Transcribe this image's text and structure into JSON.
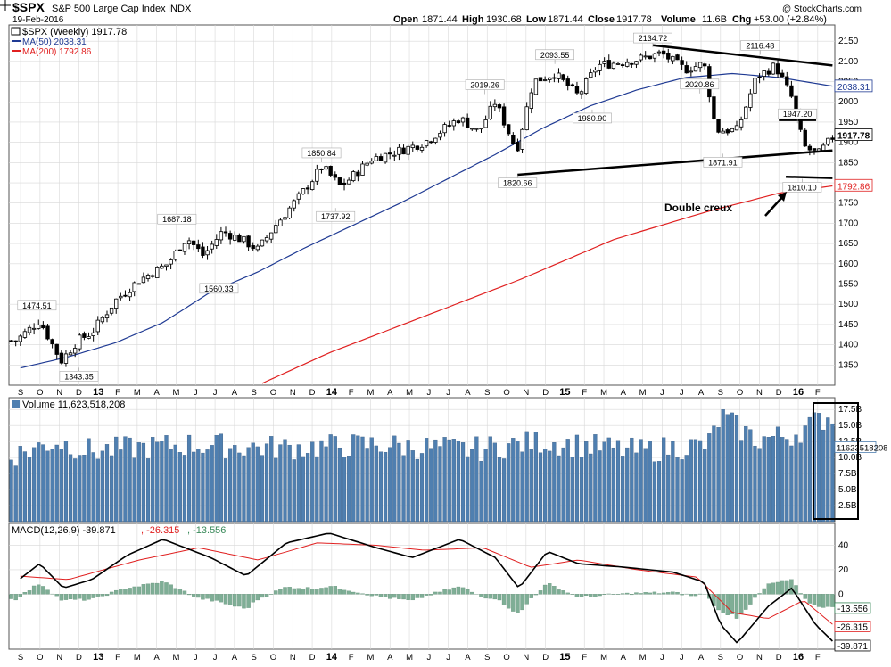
{
  "header": {
    "symbol": "$SPX",
    "name": "S&P 500 Large Cap Index",
    "exchange": "INDX",
    "date": "19-Feb-2016",
    "watermark": "@ StockCharts.com",
    "open_label": "Open",
    "open": "1871.44",
    "high_label": "High",
    "high": "1930.68",
    "low_label": "Low",
    "low": "1871.44",
    "close_label": "Close",
    "close": "1917.78",
    "volume_label": "Volume",
    "volume": "11.6B",
    "chg_label": "Chg",
    "chg": "+53.00 (+2.84%)"
  },
  "colors": {
    "up": "#ffffff",
    "down": "#000000",
    "ma50": "#1f3a93",
    "ma200": "#e02020",
    "volume_bar": "#4f7fb0",
    "macd_hist": "#7fae96",
    "grid": "#d8d8d8"
  },
  "chart_data": [
    {
      "type": "candlestick",
      "title": "$SPX (Weekly) 1917.78",
      "legend": [
        {
          "label": "$SPX (Weekly) 1917.78",
          "type": "candle"
        },
        {
          "label": "MA(50) 2038.31",
          "color": "#1f3a93"
        },
        {
          "label": "MA(200) 1792.86",
          "color": "#e02020"
        }
      ],
      "ylim": [
        1300,
        2190
      ],
      "y_ticks": [
        1350,
        1400,
        1450,
        1500,
        1550,
        1600,
        1650,
        1700,
        1750,
        1800,
        1850,
        1900,
        1950,
        2000,
        2050,
        2100,
        2150
      ],
      "x_ticks": [
        "S",
        "O",
        "N",
        "D",
        "13",
        "F",
        "M",
        "A",
        "M",
        "J",
        "J",
        "A",
        "S",
        "O",
        "N",
        "D",
        "14",
        "F",
        "M",
        "A",
        "M",
        "J",
        "J",
        "A",
        "S",
        "O",
        "N",
        "D",
        "15",
        "F",
        "M",
        "A",
        "M",
        "J",
        "J",
        "A",
        "S",
        "O",
        "N",
        "D",
        "16",
        "F"
      ],
      "x_bold_ticks": [
        "13",
        "14",
        "15",
        "16"
      ],
      "annotations": [
        {
          "text": "1474.51",
          "value": 1474.51
        },
        {
          "text": "1343.35",
          "value": 1343.35
        },
        {
          "text": "1687.18",
          "value": 1687.18
        },
        {
          "text": "1560.33",
          "value": 1560.33
        },
        {
          "text": "1850.84",
          "value": 1850.84
        },
        {
          "text": "1737.92",
          "value": 1737.92
        },
        {
          "text": "2019.26",
          "value": 2019.26
        },
        {
          "text": "1820.66",
          "value": 1820.66
        },
        {
          "text": "2093.55",
          "value": 2093.55
        },
        {
          "text": "1980.90",
          "value": 1980.9
        },
        {
          "text": "2134.72",
          "value": 2134.72
        },
        {
          "text": "2020.86",
          "value": 2020.86
        },
        {
          "text": "1871.91",
          "value": 1871.91
        },
        {
          "text": "2116.48",
          "value": 2116.48
        },
        {
          "text": "1947.20",
          "value": 1947.2
        },
        {
          "text": "1810.10",
          "value": 1810.1
        }
      ],
      "price_tags": [
        {
          "text": "2038.31",
          "value": 2038.31
        },
        {
          "text": "1917.78",
          "value": 1917.78
        },
        {
          "text": "1792.86",
          "value": 1792.86
        }
      ],
      "trendlines": [
        {
          "from": [
            2015.38,
            2140
          ],
          "to": [
            2016.15,
            2090
          ]
        },
        {
          "from": [
            2014.8,
            1820
          ],
          "to": [
            2016.15,
            1880
          ]
        },
        {
          "from": [
            2015.95,
            1815
          ],
          "to": [
            2016.15,
            1812
          ]
        },
        {
          "from": [
            2015.92,
            1955
          ],
          "to": [
            2016.08,
            1955
          ]
        }
      ],
      "note": "Double creux",
      "close_anchors": [
        [
          2012.68,
          1410
        ],
        [
          2012.78,
          1460
        ],
        [
          2012.87,
          1360
        ],
        [
          2012.94,
          1410
        ],
        [
          2013.0,
          1430
        ],
        [
          2013.1,
          1510
        ],
        [
          2013.2,
          1560
        ],
        [
          2013.32,
          1600
        ],
        [
          2013.4,
          1665
        ],
        [
          2013.47,
          1620
        ],
        [
          2013.55,
          1680
        ],
        [
          2013.63,
          1660
        ],
        [
          2013.7,
          1635
        ],
        [
          2013.78,
          1700
        ],
        [
          2013.88,
          1770
        ],
        [
          2013.97,
          1840
        ],
        [
          2014.05,
          1790
        ],
        [
          2014.18,
          1860
        ],
        [
          2014.3,
          1880
        ],
        [
          2014.4,
          1900
        ],
        [
          2014.55,
          1960
        ],
        [
          2014.63,
          1925
        ],
        [
          2014.7,
          2000
        ],
        [
          2014.79,
          1880
        ],
        [
          2014.86,
          2050
        ],
        [
          2014.95,
          2070
        ],
        [
          2015.05,
          2015
        ],
        [
          2015.13,
          2090
        ],
        [
          2015.3,
          2105
        ],
        [
          2015.4,
          2120
        ],
        [
          2015.5,
          2080
        ],
        [
          2015.58,
          2095
        ],
        [
          2015.63,
          1930
        ],
        [
          2015.72,
          1930
        ],
        [
          2015.8,
          2060
        ],
        [
          2015.88,
          2090
        ],
        [
          2015.95,
          2010
        ],
        [
          2016.0,
          1890
        ],
        [
          2016.06,
          1870
        ],
        [
          2016.13,
          1918
        ]
      ],
      "ma50_anchors": [
        [
          2012.68,
          1340
        ],
        [
          2012.9,
          1370
        ],
        [
          2013.1,
          1405
        ],
        [
          2013.3,
          1455
        ],
        [
          2013.5,
          1530
        ],
        [
          2013.7,
          1580
        ],
        [
          2013.9,
          1640
        ],
        [
          2014.1,
          1695
        ],
        [
          2014.3,
          1750
        ],
        [
          2014.5,
          1810
        ],
        [
          2014.7,
          1870
        ],
        [
          2014.9,
          1935
        ],
        [
          2015.1,
          1990
        ],
        [
          2015.3,
          2030
        ],
        [
          2015.5,
          2060
        ],
        [
          2015.7,
          2070
        ],
        [
          2015.9,
          2060
        ],
        [
          2016.13,
          2038
        ]
      ],
      "ma200_anchors": [
        [
          2013.7,
          1300
        ],
        [
          2014.0,
          1380
        ],
        [
          2014.4,
          1470
        ],
        [
          2014.8,
          1560
        ],
        [
          2015.2,
          1660
        ],
        [
          2015.6,
          1730
        ],
        [
          2015.9,
          1775
        ],
        [
          2016.13,
          1793
        ]
      ]
    },
    {
      "type": "bar",
      "title": "Volume 11,623,518,208",
      "y_ticks": [
        2.5,
        5.0,
        7.5,
        10.0,
        12.5,
        15.0,
        17.5
      ],
      "y_tick_labels": [
        "2.5B",
        "5.0B",
        "7.5B",
        "10.0B",
        "12.5B",
        "15.0B",
        "17.5B"
      ],
      "last_value_tag": "11623518208",
      "ylim": [
        0,
        18.5
      ],
      "value_anchors": [
        [
          2012.68,
          10.5
        ],
        [
          2012.85,
          12.5
        ],
        [
          2013.0,
          11.0
        ],
        [
          2013.4,
          12.0
        ],
        [
          2013.8,
          11.5
        ],
        [
          2014.2,
          12.0
        ],
        [
          2014.6,
          11.2
        ],
        [
          2014.9,
          12.5
        ],
        [
          2015.3,
          11.0
        ],
        [
          2015.6,
          12.0
        ],
        [
          2015.65,
          16.5
        ],
        [
          2015.8,
          12.8
        ],
        [
          2015.95,
          13.5
        ],
        [
          2016.05,
          15.5
        ],
        [
          2016.13,
          16.8
        ]
      ]
    },
    {
      "type": "line",
      "title": "MACD(12,26,9) -39.871, -26.315, -13.556",
      "legend": [
        {
          "label": "MACD(12,26,9) -39.871",
          "color": "#000000"
        },
        {
          "label": ", -26.315",
          "color": "#e02020"
        },
        {
          "label": ", -13.556",
          "color": "#3a8a5a"
        }
      ],
      "y_ticks": [
        0,
        20,
        40
      ],
      "ylim": [
        -45,
        55
      ],
      "value_tags": [
        "-13.556",
        "-26.315",
        "-39.871"
      ],
      "macd_anchors": [
        [
          2012.68,
          10
        ],
        [
          2012.78,
          25
        ],
        [
          2012.88,
          5
        ],
        [
          2013.0,
          12
        ],
        [
          2013.15,
          32
        ],
        [
          2013.3,
          45
        ],
        [
          2013.5,
          30
        ],
        [
          2013.65,
          15
        ],
        [
          2013.82,
          42
        ],
        [
          2014.0,
          50
        ],
        [
          2014.2,
          38
        ],
        [
          2014.35,
          30
        ],
        [
          2014.55,
          45
        ],
        [
          2014.7,
          30
        ],
        [
          2014.8,
          5
        ],
        [
          2014.92,
          35
        ],
        [
          2015.05,
          25
        ],
        [
          2015.25,
          22
        ],
        [
          2015.45,
          18
        ],
        [
          2015.58,
          10
        ],
        [
          2015.65,
          -25
        ],
        [
          2015.72,
          -40
        ],
        [
          2015.85,
          -10
        ],
        [
          2015.95,
          5
        ],
        [
          2016.05,
          -25
        ],
        [
          2016.13,
          -40
        ]
      ],
      "signal_anchors": [
        [
          2012.68,
          15
        ],
        [
          2012.9,
          12
        ],
        [
          2013.2,
          28
        ],
        [
          2013.45,
          38
        ],
        [
          2013.7,
          28
        ],
        [
          2013.95,
          42
        ],
        [
          2014.2,
          40
        ],
        [
          2014.4,
          36
        ],
        [
          2014.65,
          38
        ],
        [
          2014.85,
          22
        ],
        [
          2015.05,
          28
        ],
        [
          2015.3,
          20
        ],
        [
          2015.55,
          14
        ],
        [
          2015.7,
          -15
        ],
        [
          2015.85,
          -20
        ],
        [
          2016.0,
          -5
        ],
        [
          2016.13,
          -26
        ]
      ]
    }
  ],
  "x_ticks_bottom": [
    "S",
    "O",
    "N",
    "D",
    "13",
    "F",
    "M",
    "A",
    "M",
    "J",
    "J",
    "A",
    "S",
    "O",
    "N",
    "D",
    "14",
    "F",
    "M",
    "A",
    "M",
    "J",
    "J",
    "A",
    "S",
    "O",
    "N",
    "D",
    "15",
    "F",
    "M",
    "A",
    "M",
    "J",
    "J",
    "A",
    "S",
    "O",
    "N",
    "D",
    "16",
    "F"
  ]
}
